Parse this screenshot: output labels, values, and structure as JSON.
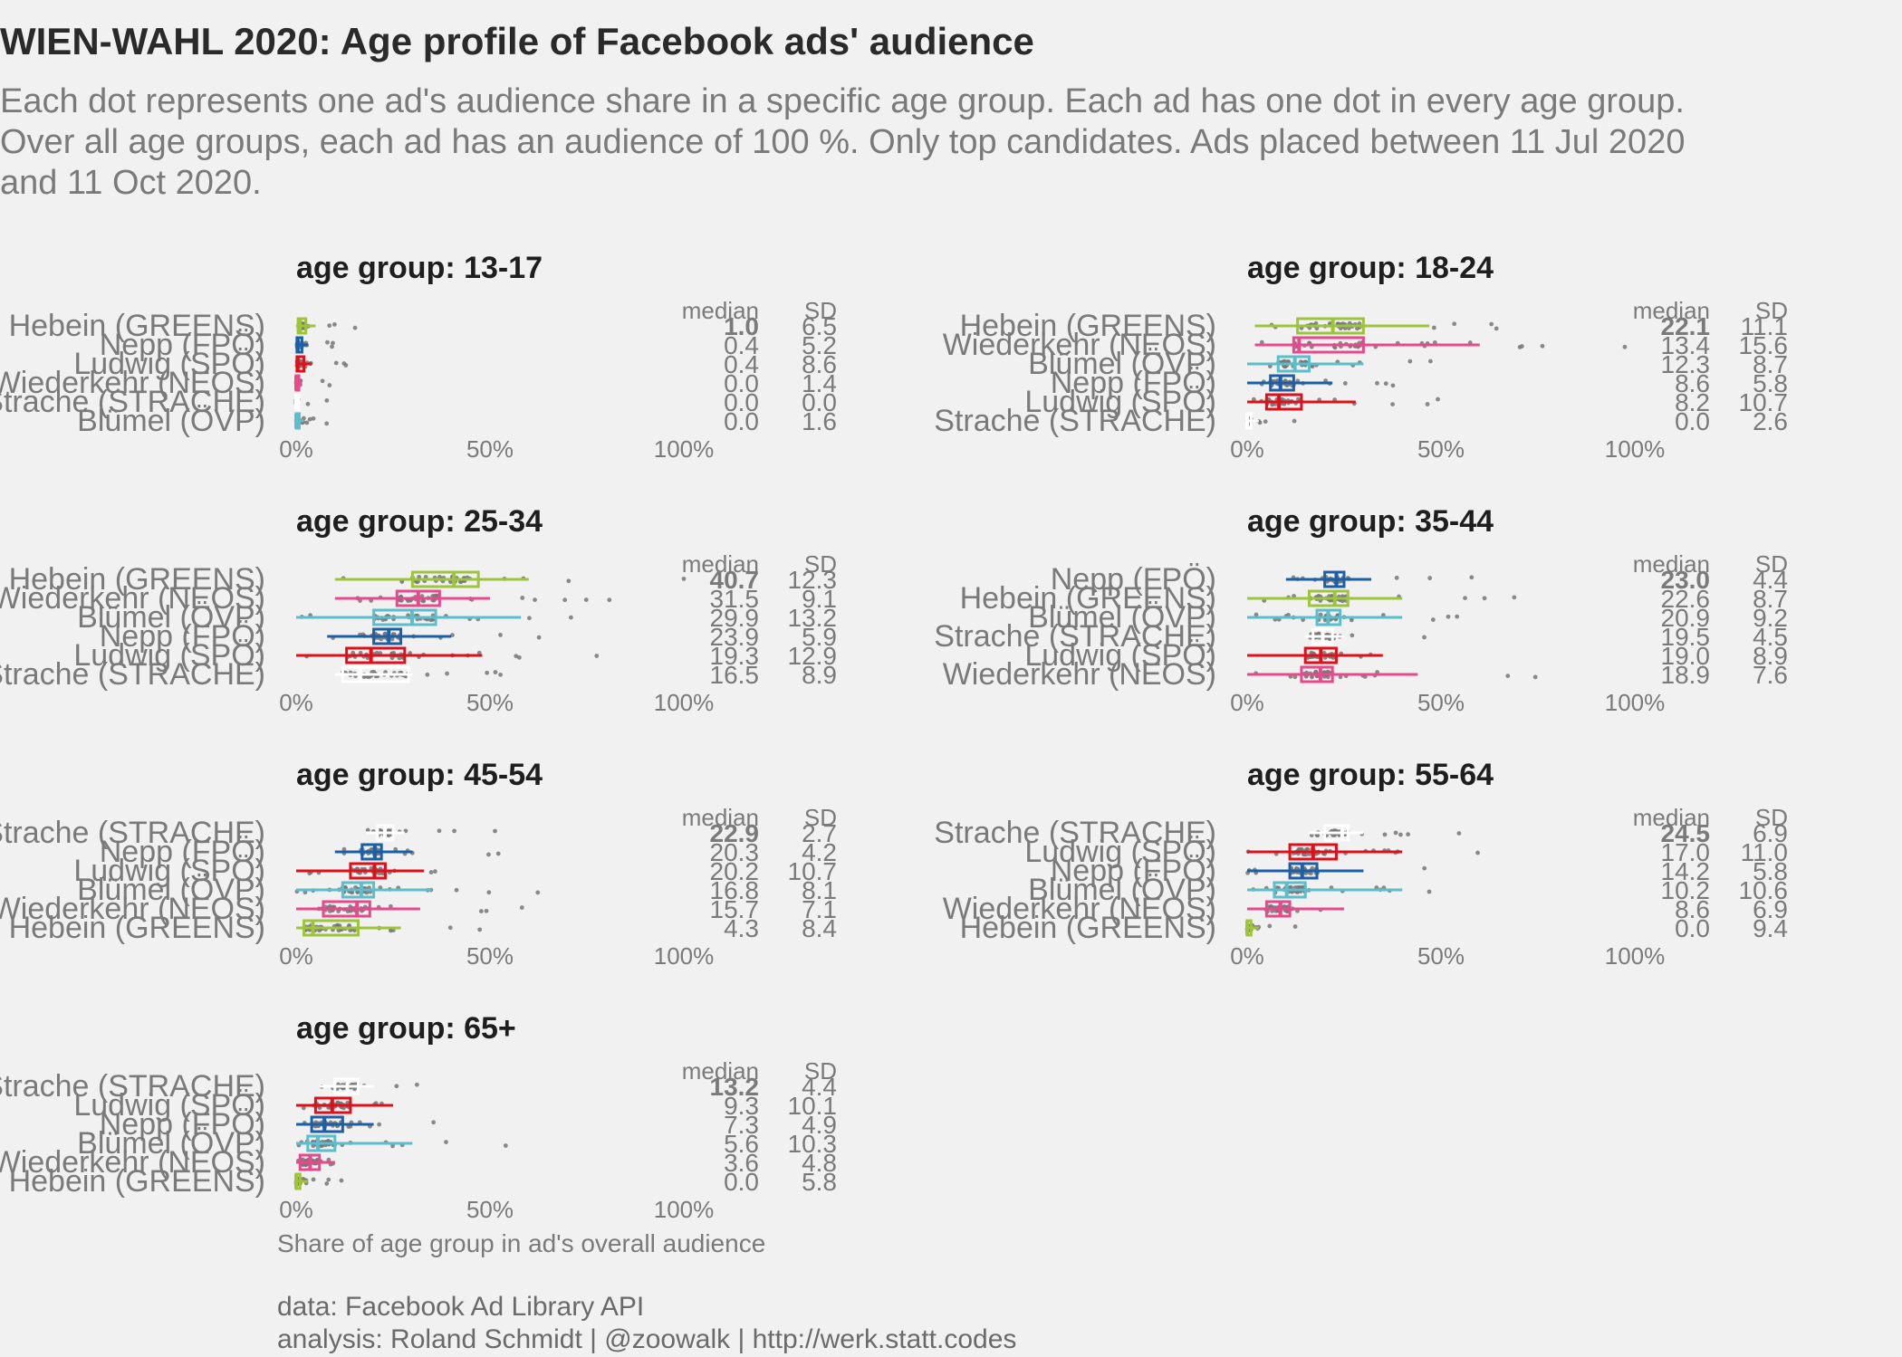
{
  "title": "WIEN-WAHL 2020: Age profile of Facebook ads' audience",
  "subtitle": "Each dot represents one ad's audience share in a specific age group. Each ad has one dot in every age group. Over all age groups, each ad has an audience of 100 %. Only top candidates. Ads placed between 11 Jul 2020 and 11 Oct 2020.",
  "x_axis_label": "Share of age group in ad's overall audience",
  "caption_lines": [
    "data: Facebook Ad Library API",
    "analysis: Roland Schmidt | @zoowalk | http://werk.statt.codes"
  ],
  "colors": {
    "Hebein (GREENS)": "#9dc43a",
    "Nepp (FPÖ)": "#1a5fa8",
    "Ludwig (SPÖ)": "#e0101a",
    "Wiederkehr (NEOS)": "#e8498c",
    "Strache (STRACHE)": "#ffffff",
    "Blümel (ÖVP)": "#5cbdcb",
    "dots": "#777777",
    "background": "#f1f1f1"
  },
  "chart_data": [
    {
      "type": "boxplot",
      "title": "age group: 13-17",
      "xlim": [
        0,
        100
      ],
      "x_ticks": [
        "0%",
        "50%",
        "100%"
      ],
      "stat_headers": [
        "median",
        "SD"
      ],
      "rows": [
        {
          "label": "Hebein (GREENS)",
          "median": "1.0",
          "sd": "6.5",
          "q1": 0.5,
          "q3": 2.5,
          "wmin": 0,
          "wmax": 5
        },
        {
          "label": "Nepp (FPÖ)",
          "median": "0.4",
          "sd": "5.2",
          "q1": 0.2,
          "q3": 1.5,
          "wmin": 0,
          "wmax": 3
        },
        {
          "label": "Ludwig (SPÖ)",
          "median": "0.4",
          "sd": "8.6",
          "q1": 0.2,
          "q3": 2,
          "wmin": 0,
          "wmax": 4
        },
        {
          "label": "Wiederkehr (NEOS)",
          "median": "0.0",
          "sd": "1.4",
          "q1": 0,
          "q3": 0.6,
          "wmin": 0,
          "wmax": 1.5
        },
        {
          "label": "Strache (STRACHE)",
          "median": "0.0",
          "sd": "0.0",
          "q1": 0,
          "q3": 0.2,
          "wmin": 0,
          "wmax": 0.5
        },
        {
          "label": "Blümel (ÖVP)",
          "median": "0.0",
          "sd": "1.6",
          "q1": 0,
          "q3": 0.8,
          "wmin": 0,
          "wmax": 2
        }
      ]
    },
    {
      "type": "boxplot",
      "title": "age group: 18-24",
      "xlim": [
        0,
        100
      ],
      "x_ticks": [
        "0%",
        "50%",
        "100%"
      ],
      "stat_headers": [
        "median",
        "SD"
      ],
      "rows": [
        {
          "label": "Hebein (GREENS)",
          "median": "22.1",
          "sd": "11.1",
          "q1": 13,
          "q3": 30,
          "wmin": 2,
          "wmax": 47
        },
        {
          "label": "Wiederkehr (NEOS)",
          "median": "13.4",
          "sd": "15.6",
          "q1": 12,
          "q3": 30,
          "wmin": 2,
          "wmax": 60
        },
        {
          "label": "Blümel (ÖVP)",
          "median": "12.3",
          "sd": "8.7",
          "q1": 8,
          "q3": 16,
          "wmin": 0,
          "wmax": 30
        },
        {
          "label": "Nepp (FPÖ)",
          "median": "8.6",
          "sd": "5.8",
          "q1": 6,
          "q3": 12,
          "wmin": 0,
          "wmax": 22
        },
        {
          "label": "Ludwig (SPÖ)",
          "median": "8.2",
          "sd": "10.7",
          "q1": 5,
          "q3": 14,
          "wmin": 0,
          "wmax": 28
        },
        {
          "label": "Strache (STRACHE)",
          "median": "0.0",
          "sd": "2.6",
          "q1": 0,
          "q3": 1,
          "wmin": 0,
          "wmax": 3
        }
      ]
    },
    {
      "type": "boxplot",
      "title": "age group: 25-34",
      "xlim": [
        0,
        100
      ],
      "x_ticks": [
        "0%",
        "50%",
        "100%"
      ],
      "stat_headers": [
        "median",
        "SD"
      ],
      "rows": [
        {
          "label": "Hebein (GREENS)",
          "median": "40.7",
          "sd": "12.3",
          "q1": 30,
          "q3": 47,
          "wmin": 10,
          "wmax": 60
        },
        {
          "label": "Wiederkehr (NEOS)",
          "median": "31.5",
          "sd": "9.1",
          "q1": 26,
          "q3": 37,
          "wmin": 10,
          "wmax": 50
        },
        {
          "label": "Blümel (ÖVP)",
          "median": "29.9",
          "sd": "13.2",
          "q1": 20,
          "q3": 36,
          "wmin": 0,
          "wmax": 58
        },
        {
          "label": "Nepp (FPÖ)",
          "median": "23.9",
          "sd": "5.9",
          "q1": 20,
          "q3": 27,
          "wmin": 8,
          "wmax": 40
        },
        {
          "label": "Ludwig (SPÖ)",
          "median": "19.3",
          "sd": "12.9",
          "q1": 13,
          "q3": 28,
          "wmin": 0,
          "wmax": 48
        },
        {
          "label": "Strache (STRACHE)",
          "median": "16.5",
          "sd": "8.9",
          "q1": 12,
          "q3": 29,
          "wmin": 10,
          "wmax": 30
        }
      ]
    },
    {
      "type": "boxplot",
      "title": "age group: 35-44",
      "xlim": [
        0,
        100
      ],
      "x_ticks": [
        "0%",
        "50%",
        "100%"
      ],
      "stat_headers": [
        "median",
        "SD"
      ],
      "rows": [
        {
          "label": "Nepp (FPÖ)",
          "median": "23.0",
          "sd": "4.4",
          "q1": 20,
          "q3": 25,
          "wmin": 10,
          "wmax": 32
        },
        {
          "label": "Hebein (GREENS)",
          "median": "22.6",
          "sd": "8.7",
          "q1": 16,
          "q3": 26,
          "wmin": 0,
          "wmax": 40
        },
        {
          "label": "Blümel (ÖVP)",
          "median": "20.9",
          "sd": "9.2",
          "q1": 18,
          "q3": 24,
          "wmin": 0,
          "wmax": 40
        },
        {
          "label": "Strache (STRACHE)",
          "median": "19.5",
          "sd": "4.5",
          "q1": 17,
          "q3": 22,
          "wmin": 15,
          "wmax": 25
        },
        {
          "label": "Ludwig (SPÖ)",
          "median": "19.0",
          "sd": "8.9",
          "q1": 15,
          "q3": 23,
          "wmin": 0,
          "wmax": 35
        },
        {
          "label": "Wiederkehr (NEOS)",
          "median": "18.9",
          "sd": "7.6",
          "q1": 14,
          "q3": 22,
          "wmin": 0,
          "wmax": 44
        }
      ]
    },
    {
      "type": "boxplot",
      "title": "age group: 45-54",
      "xlim": [
        0,
        100
      ],
      "x_ticks": [
        "0%",
        "50%",
        "100%"
      ],
      "stat_headers": [
        "median",
        "SD"
      ],
      "rows": [
        {
          "label": "Strache (STRACHE)",
          "median": "22.9",
          "sd": "2.7",
          "q1": 21,
          "q3": 25,
          "wmin": 18,
          "wmax": 28
        },
        {
          "label": "Nepp (FPÖ)",
          "median": "20.3",
          "sd": "4.2",
          "q1": 17,
          "q3": 22,
          "wmin": 10,
          "wmax": 30
        },
        {
          "label": "Ludwig (SPÖ)",
          "median": "20.2",
          "sd": "10.7",
          "q1": 14,
          "q3": 23,
          "wmin": 0,
          "wmax": 33
        },
        {
          "label": "Blümel (ÖVP)",
          "median": "16.8",
          "sd": "8.1",
          "q1": 12,
          "q3": 20,
          "wmin": 0,
          "wmax": 35
        },
        {
          "label": "Wiederkehr (NEOS)",
          "median": "15.7",
          "sd": "7.1",
          "q1": 7,
          "q3": 19,
          "wmin": 0,
          "wmax": 32
        },
        {
          "label": "Hebein (GREENS)",
          "median": "4.3",
          "sd": "8.4",
          "q1": 2,
          "q3": 16,
          "wmin": 0,
          "wmax": 27
        }
      ]
    },
    {
      "type": "boxplot",
      "title": "age group: 55-64",
      "xlim": [
        0,
        100
      ],
      "x_ticks": [
        "0%",
        "50%",
        "100%"
      ],
      "stat_headers": [
        "median",
        "SD"
      ],
      "rows": [
        {
          "label": "Strache (STRACHE)",
          "median": "24.5",
          "sd": "6.9",
          "q1": 20,
          "q3": 26,
          "wmin": 16,
          "wmax": 30
        },
        {
          "label": "Ludwig (SPÖ)",
          "median": "17.0",
          "sd": "11.0",
          "q1": 11,
          "q3": 23,
          "wmin": 0,
          "wmax": 40
        },
        {
          "label": "Nepp (FPÖ)",
          "median": "14.2",
          "sd": "5.8",
          "q1": 11,
          "q3": 18,
          "wmin": 0,
          "wmax": 30
        },
        {
          "label": "Blümel (ÖVP)",
          "median": "10.2",
          "sd": "10.6",
          "q1": 7,
          "q3": 15,
          "wmin": 0,
          "wmax": 40
        },
        {
          "label": "Wiederkehr (NEOS)",
          "median": "8.6",
          "sd": "6.9",
          "q1": 5,
          "q3": 11,
          "wmin": 0,
          "wmax": 25
        },
        {
          "label": "Hebein (GREENS)",
          "median": "0.0",
          "sd": "9.4",
          "q1": 0,
          "q3": 1,
          "wmin": 0,
          "wmax": 3
        }
      ]
    },
    {
      "type": "boxplot",
      "title": "age group: 65+",
      "xlim": [
        0,
        100
      ],
      "x_ticks": [
        "0%",
        "50%",
        "100%"
      ],
      "stat_headers": [
        "median",
        "SD"
      ],
      "rows": [
        {
          "label": "Strache (STRACHE)",
          "median": "13.2",
          "sd": "4.4",
          "q1": 10,
          "q3": 16,
          "wmin": 6,
          "wmax": 20
        },
        {
          "label": "Ludwig (SPÖ)",
          "median": "9.3",
          "sd": "10.1",
          "q1": 5,
          "q3": 14,
          "wmin": 0,
          "wmax": 25
        },
        {
          "label": "Nepp (FPÖ)",
          "median": "7.3",
          "sd": "4.9",
          "q1": 4,
          "q3": 12,
          "wmin": 0,
          "wmax": 20
        },
        {
          "label": "Blümel (ÖVP)",
          "median": "5.6",
          "sd": "10.3",
          "q1": 3,
          "q3": 10,
          "wmin": 0,
          "wmax": 30
        },
        {
          "label": "Wiederkehr (NEOS)",
          "median": "3.6",
          "sd": "4.8",
          "q1": 1,
          "q3": 6,
          "wmin": 0,
          "wmax": 10
        },
        {
          "label": "Hebein (GREENS)",
          "median": "0.0",
          "sd": "5.8",
          "q1": 0,
          "q3": 1,
          "wmin": 0,
          "wmax": 3
        }
      ]
    }
  ]
}
